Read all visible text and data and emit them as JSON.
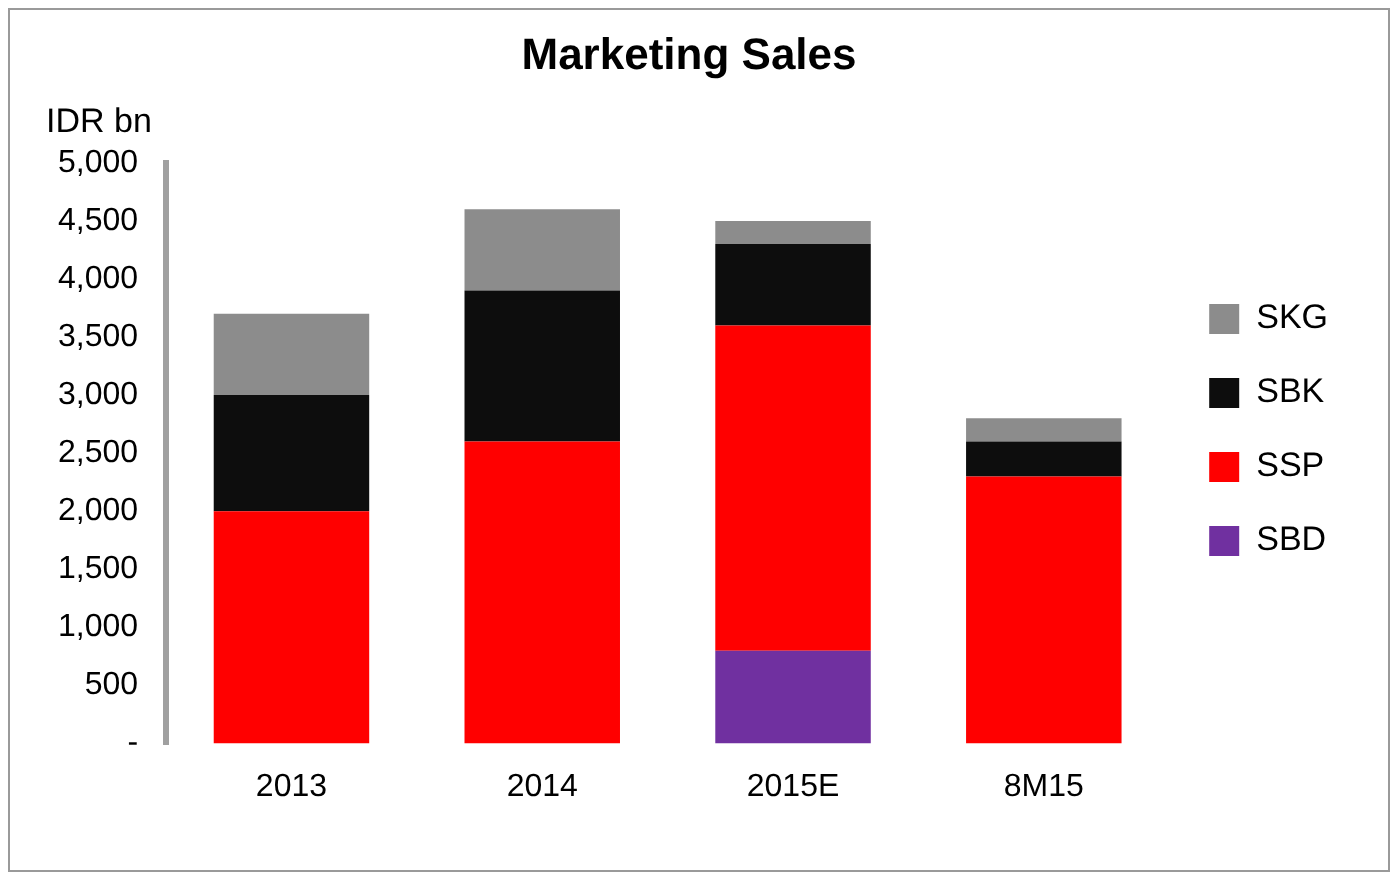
{
  "chart_data": {
    "type": "bar",
    "title": "Marketing Sales",
    "ylabel": "IDR bn",
    "stacked": true,
    "categories": [
      "2013",
      "2014",
      "2015E",
      "8M15"
    ],
    "series": [
      {
        "name": "SBD",
        "color": "#7030a0",
        "values": [
          null,
          null,
          800,
          null
        ]
      },
      {
        "name": "SSP",
        "color": "#ff0000",
        "values": [
          2000,
          2600,
          2800,
          2300
        ]
      },
      {
        "name": "SBK",
        "color": "#0d0d0d",
        "values": [
          1000,
          1300,
          700,
          300
        ]
      },
      {
        "name": "SKG",
        "color": "#8c8c8c",
        "values": [
          700,
          700,
          200,
          200
        ]
      }
    ],
    "ylim": [
      0,
      5000
    ],
    "yticks": [
      {
        "value": 0,
        "label": "-"
      },
      {
        "value": 500,
        "label": "500"
      },
      {
        "value": 1000,
        "label": "1,000"
      },
      {
        "value": 1500,
        "label": "1,500"
      },
      {
        "value": 2000,
        "label": "2,000"
      },
      {
        "value": 2500,
        "label": "2,500"
      },
      {
        "value": 3000,
        "label": "3,000"
      },
      {
        "value": 3500,
        "label": "3,500"
      },
      {
        "value": 4000,
        "label": "4,000"
      },
      {
        "value": 4500,
        "label": "4,500"
      },
      {
        "value": 5000,
        "label": "5,000"
      }
    ],
    "grid": false,
    "legend": "right"
  }
}
